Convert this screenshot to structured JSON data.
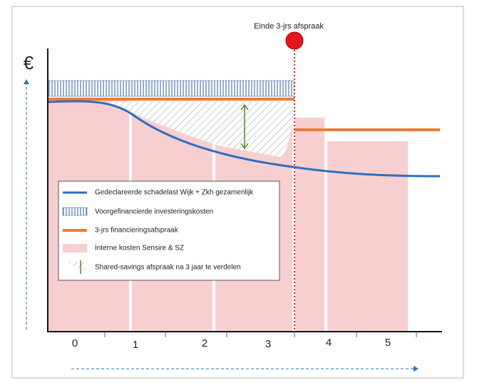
{
  "axis": {
    "y_label": "€",
    "x_labels": [
      "0",
      "1",
      "2",
      "3",
      "4",
      "5"
    ]
  },
  "annotation": "Einde 3-jrs afspraak",
  "legend": [
    "Gedeclareerde schadelast Wijk + Zkh gezamenlijk",
    "Voorgefinancierde investeringskosten",
    "3-jrs financieringsafspraak",
    "Interne kosten Sensire & SZ",
    "Shared-savings afspraak na 3 jaar te verdelen"
  ]
}
